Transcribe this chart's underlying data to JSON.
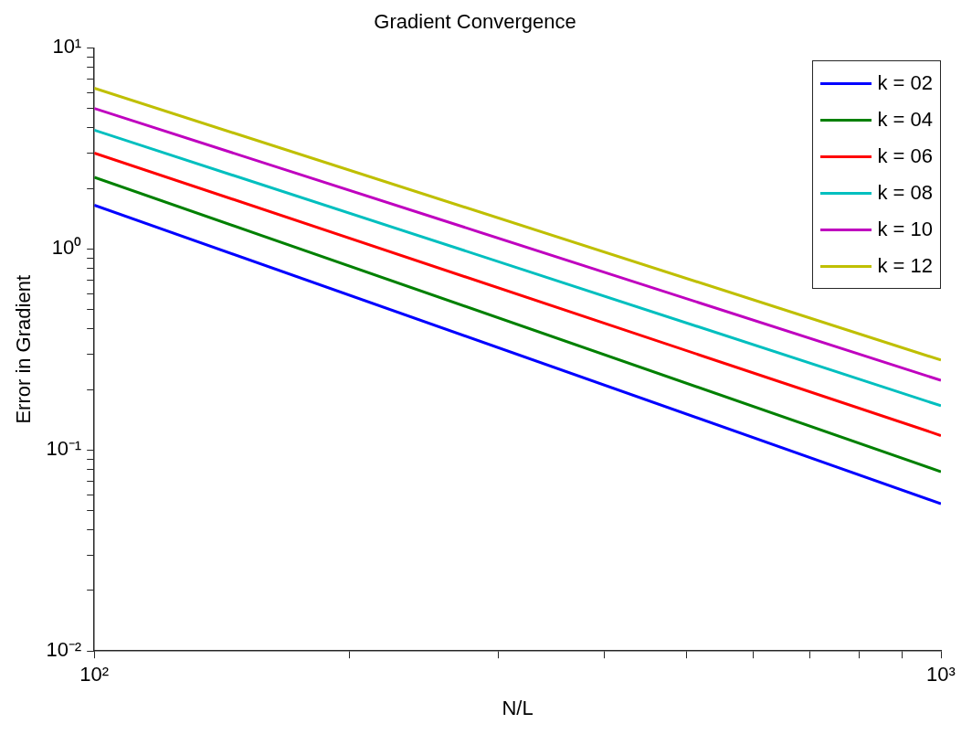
{
  "chart_data": {
    "type": "line",
    "title": "Gradient Convergence",
    "xlabel": "N/L",
    "ylabel": "Error in Gradient",
    "log": "xy",
    "legend": "top right",
    "marker": "none",
    "line_style": "solid",
    "x": [
      100,
      1000
    ],
    "xlim": [
      100,
      1000
    ],
    "ylim": [
      0.01,
      10
    ],
    "xticks": [
      {
        "value": 100,
        "label": "10²"
      },
      {
        "value": 200,
        "label": null
      },
      {
        "value": 300,
        "label": null
      },
      {
        "value": 400,
        "label": null
      },
      {
        "value": 500,
        "label": null
      },
      {
        "value": 600,
        "label": null
      },
      {
        "value": 700,
        "label": null
      },
      {
        "value": 800,
        "label": null
      },
      {
        "value": 900,
        "label": null
      },
      {
        "value": 1000,
        "label": "10³"
      }
    ],
    "yticks": [
      {
        "value": 0.01,
        "label": "10⁻²"
      },
      {
        "value": 0.02,
        "label": null
      },
      {
        "value": 0.03,
        "label": null
      },
      {
        "value": 0.04,
        "label": null
      },
      {
        "value": 0.05,
        "label": null
      },
      {
        "value": 0.06,
        "label": null
      },
      {
        "value": 0.07,
        "label": null
      },
      {
        "value": 0.08,
        "label": null
      },
      {
        "value": 0.09,
        "label": null
      },
      {
        "value": 0.1,
        "label": "10⁻¹"
      },
      {
        "value": 0.2,
        "label": null
      },
      {
        "value": 0.3,
        "label": null
      },
      {
        "value": 0.4,
        "label": null
      },
      {
        "value": 0.5,
        "label": null
      },
      {
        "value": 0.6,
        "label": null
      },
      {
        "value": 0.7,
        "label": null
      },
      {
        "value": 0.8,
        "label": null
      },
      {
        "value": 0.9,
        "label": null
      },
      {
        "value": 1,
        "label": "10⁰"
      },
      {
        "value": 2,
        "label": null
      },
      {
        "value": 3,
        "label": null
      },
      {
        "value": 4,
        "label": null
      },
      {
        "value": 5,
        "label": null
      },
      {
        "value": 6,
        "label": null
      },
      {
        "value": 7,
        "label": null
      },
      {
        "value": 8,
        "label": null
      },
      {
        "value": 9,
        "label": null
      },
      {
        "value": 10,
        "label": "10¹"
      }
    ],
    "series": [
      {
        "name": "k = 02",
        "color": "#0000ff",
        "values": [
          1.65,
          0.054
        ]
      },
      {
        "name": "k = 04",
        "color": "#008000",
        "values": [
          2.27,
          0.078
        ]
      },
      {
        "name": "k = 06",
        "color": "#ff0000",
        "values": [
          3.0,
          0.118
        ]
      },
      {
        "name": "k = 08",
        "color": "#00bfbf",
        "values": [
          3.9,
          0.166
        ]
      },
      {
        "name": "k = 10",
        "color": "#bf00bf",
        "values": [
          5.0,
          0.222
        ]
      },
      {
        "name": "k = 12",
        "color": "#bfbf00",
        "values": [
          6.3,
          0.28
        ]
      }
    ]
  }
}
